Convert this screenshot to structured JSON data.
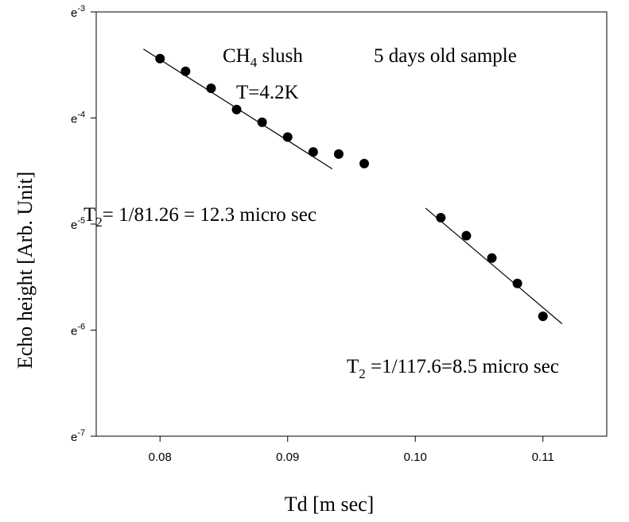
{
  "chart_data": {
    "type": "scatter",
    "title": "",
    "xlabel": "Td [m sec]",
    "ylabel": "Echo height [Arb. Unit]",
    "xlim": [
      0.075,
      0.115
    ],
    "ylim_exponent": [
      -7,
      -3
    ],
    "y_scale": "log (natural)",
    "grid": false,
    "x_ticks": [
      "0.08",
      "0.09",
      "0.10",
      "0.11"
    ],
    "x_tick_values": [
      0.08,
      0.09,
      0.1,
      0.11
    ],
    "y_ticks": [
      {
        "base": "e",
        "exp": "-3",
        "value": -3
      },
      {
        "base": "e",
        "exp": "-4",
        "value": -4
      },
      {
        "base": "e",
        "exp": "-5",
        "value": -5
      },
      {
        "base": "e",
        "exp": "-6",
        "value": -6
      },
      {
        "base": "e",
        "exp": "-7",
        "value": -7
      }
    ],
    "series": [
      {
        "x": [
          0.08,
          0.082,
          0.084,
          0.086,
          0.088,
          0.09,
          0.092,
          0.094,
          0.096,
          0.102,
          0.104,
          0.106,
          0.108,
          0.11
        ],
        "ln_y": [
          -3.44,
          -3.56,
          -3.72,
          -3.92,
          -4.04,
          -4.18,
          -4.32,
          -4.34,
          -4.43,
          -4.94,
          -5.11,
          -5.32,
          -5.56,
          -5.87
        ],
        "color": "#000000"
      }
    ],
    "fit_lines": [
      {
        "x": [
          0.0787,
          0.0935
        ],
        "ln_y": [
          -3.35,
          -4.48
        ]
      },
      {
        "x": [
          0.1008,
          0.1115
        ],
        "ln_y": [
          -4.85,
          -5.94
        ]
      }
    ],
    "annotations": {
      "sample_name": {
        "pre": "CH",
        "sub": "4",
        "post": " slush"
      },
      "sample_age": "5 days old sample",
      "temperature": "T=4.2K",
      "t2_fit1": {
        "pre": "T",
        "sub": "2",
        "post": "= 1/81.26 = 12.3 micro sec"
      },
      "t2_fit2": {
        "pre": "T",
        "sub": "2",
        "post": " =1/117.6=8.5 micro sec"
      }
    }
  }
}
